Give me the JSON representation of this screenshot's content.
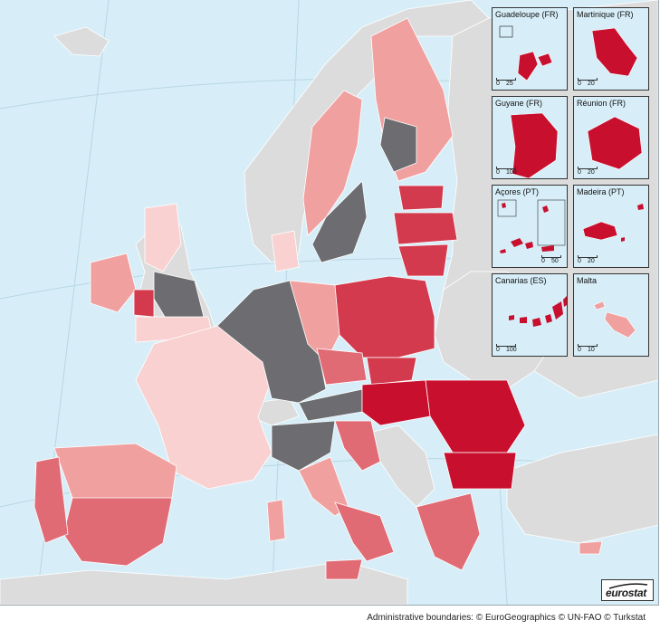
{
  "colors": {
    "sea": "#d7eef8",
    "non_eu": "#dcdcdc",
    "no_data": "#6d6d71",
    "class_1": "#f9d1d1",
    "class_2": "#f1a0a0",
    "class_3": "#e16b75",
    "class_4": "#d43a4d",
    "class_5": "#c8102e",
    "border": "#ffffff"
  },
  "insets": [
    {
      "label": "Guadeloupe (FR)",
      "scale_start": "0",
      "scale_end": "25"
    },
    {
      "label": "Martinique (FR)",
      "scale_start": "0",
      "scale_end": "20"
    },
    {
      "label": "Guyane (FR)",
      "scale_start": "0",
      "scale_end": "100"
    },
    {
      "label": "Réunion (FR)",
      "scale_start": "0",
      "scale_end": "20"
    },
    {
      "label": "Açores (PT)",
      "scale_start": "0",
      "scale_end": "50"
    },
    {
      "label": "Madeira (PT)",
      "scale_start": "0",
      "scale_end": "20"
    },
    {
      "label": "Canarias (ES)",
      "scale_start": "0",
      "scale_end": "100"
    },
    {
      "label": "Malta",
      "scale_start": "0",
      "scale_end": "10"
    }
  ],
  "logo": {
    "text": "eurostat"
  },
  "credit": "Administrative boundaries: © EuroGeographics © UN-FAO © Turkstat"
}
